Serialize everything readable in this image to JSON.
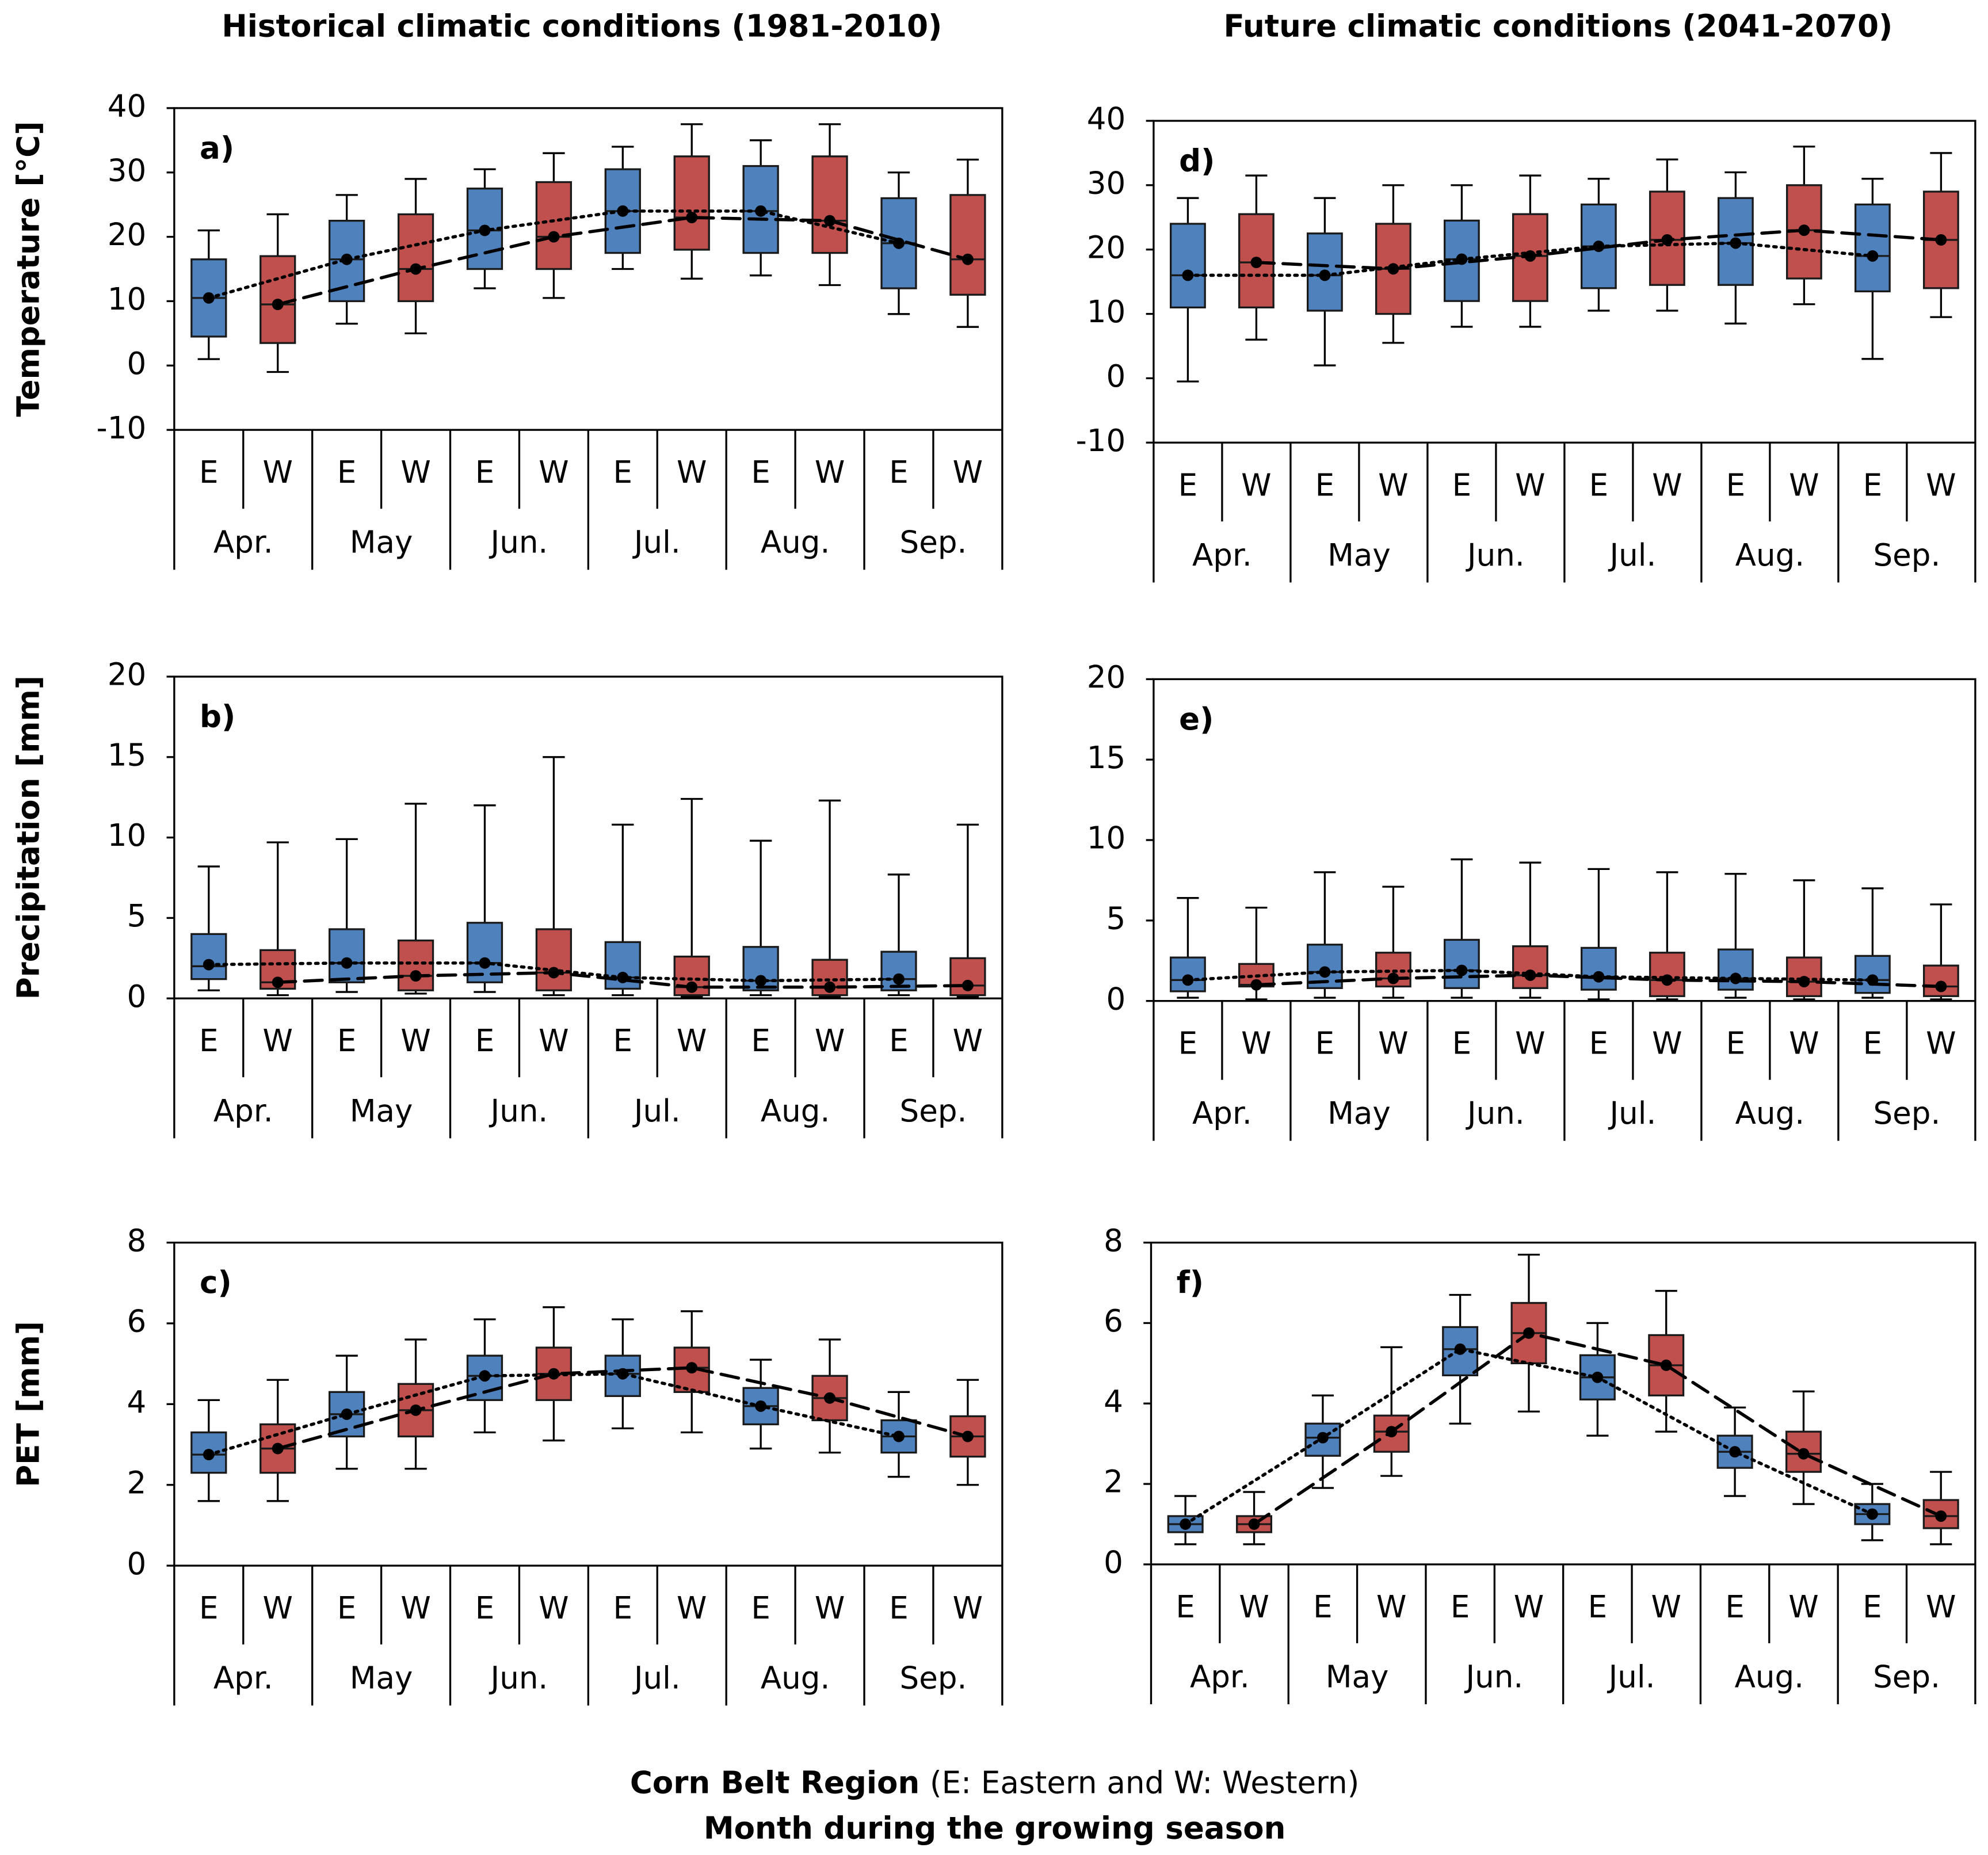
{
  "chart_data": [
    {
      "type": "box",
      "title": "Historical climatic conditions (1981-2010)",
      "label": "a)",
      "ylabel": "Temperature [°C]",
      "categories": [
        "Apr.",
        "May",
        "Jun.",
        "Jul.",
        "Aug.",
        "Sep."
      ],
      "ylim": [
        -10,
        40
      ],
      "yticks": [
        -10,
        0,
        10,
        20,
        30,
        40
      ],
      "series": [
        {
          "name": "E",
          "color": "#4f81bd",
          "line_style": "dotted",
          "min": [
            1,
            6.5,
            12,
            15,
            14,
            8
          ],
          "q1": [
            4.5,
            10,
            15,
            17.5,
            17.5,
            12
          ],
          "median": [
            10.5,
            16.5,
            21,
            24,
            24,
            19
          ],
          "q3": [
            16.5,
            22.5,
            27.5,
            30.5,
            31,
            26
          ],
          "max": [
            21,
            26.5,
            30.5,
            34,
            35,
            30
          ],
          "mean": [
            10.5,
            16.5,
            21,
            24,
            24,
            19
          ]
        },
        {
          "name": "W",
          "color": "#c0504d",
          "line_style": "dashed",
          "min": [
            -1,
            5,
            10.5,
            13.5,
            12.5,
            6
          ],
          "q1": [
            3.5,
            10,
            15,
            18,
            17.5,
            11
          ],
          "median": [
            9.5,
            15,
            20,
            23,
            22.5,
            16.5
          ],
          "q3": [
            17,
            23.5,
            28.5,
            32.5,
            32.5,
            26.5
          ],
          "max": [
            23.5,
            29,
            33,
            37.5,
            37.5,
            32
          ],
          "mean": [
            9.5,
            15,
            20,
            23,
            22.5,
            16.5
          ]
        }
      ]
    },
    {
      "type": "box",
      "label": "b)",
      "ylabel": "Precipitation [mm]",
      "categories": [
        "Apr.",
        "May",
        "Jun.",
        "Jul.",
        "Aug.",
        "Sep."
      ],
      "ylim": [
        0,
        20
      ],
      "yticks": [
        0,
        5,
        10,
        15,
        20
      ],
      "series": [
        {
          "name": "E",
          "color": "#4f81bd",
          "line_style": "dotted",
          "min": [
            0.5,
            0.4,
            0.4,
            0.2,
            0.2,
            0.2
          ],
          "q1": [
            1.2,
            1,
            1,
            0.6,
            0.5,
            0.5
          ],
          "median": [
            2,
            2.2,
            2.2,
            1.3,
            1.1,
            1.2
          ],
          "q3": [
            4,
            4.3,
            4.7,
            3.5,
            3.2,
            2.9
          ],
          "max": [
            8.2,
            9.9,
            12,
            10.8,
            9.8,
            7.7
          ],
          "mean": [
            2.1,
            2.2,
            2.2,
            1.3,
            1.1,
            1.2
          ]
        },
        {
          "name": "W",
          "color": "#c0504d",
          "line_style": "dashed",
          "min": [
            0.2,
            0.3,
            0.2,
            0.1,
            0.1,
            0.1
          ],
          "q1": [
            0.6,
            0.5,
            0.5,
            0.2,
            0.2,
            0.2
          ],
          "median": [
            1,
            1.4,
            1.6,
            0.7,
            0.7,
            0.8
          ],
          "q3": [
            3,
            3.6,
            4.3,
            2.6,
            2.4,
            2.5
          ],
          "max": [
            9.7,
            12.1,
            15,
            12.4,
            12.3,
            10.8
          ],
          "mean": [
            1,
            1.4,
            1.6,
            0.7,
            0.7,
            0.8
          ]
        }
      ]
    },
    {
      "type": "box",
      "label": "c)",
      "ylabel": "PET [mm]",
      "categories": [
        "Apr.",
        "May",
        "Jun.",
        "Jul.",
        "Aug.",
        "Sep."
      ],
      "ylim": [
        0,
        8
      ],
      "yticks": [
        0,
        2,
        4,
        6,
        8
      ],
      "series": [
        {
          "name": "E",
          "color": "#4f81bd",
          "line_style": "dotted",
          "min": [
            1.6,
            2.4,
            3.3,
            3.4,
            2.9,
            2.2
          ],
          "q1": [
            2.3,
            3.2,
            4.1,
            4.2,
            3.5,
            2.8
          ],
          "median": [
            2.75,
            3.75,
            4.7,
            4.75,
            3.95,
            3.2
          ],
          "q3": [
            3.3,
            4.3,
            5.2,
            5.2,
            4.4,
            3.6
          ],
          "max": [
            4.1,
            5.2,
            6.1,
            6.1,
            5.1,
            4.3
          ],
          "mean": [
            2.75,
            3.75,
            4.7,
            4.75,
            3.95,
            3.2
          ]
        },
        {
          "name": "W",
          "color": "#c0504d",
          "line_style": "dashed",
          "min": [
            1.6,
            2.4,
            3.1,
            3.3,
            2.8,
            2
          ],
          "q1": [
            2.3,
            3.2,
            4.1,
            4.3,
            3.6,
            2.7
          ],
          "median": [
            2.9,
            3.85,
            4.75,
            4.9,
            4.15,
            3.2
          ],
          "q3": [
            3.5,
            4.5,
            5.4,
            5.4,
            4.7,
            3.7
          ],
          "max": [
            4.6,
            5.6,
            6.4,
            6.3,
            5.6,
            4.6
          ],
          "mean": [
            2.9,
            3.85,
            4.75,
            4.9,
            4.15,
            3.2
          ]
        }
      ]
    },
    {
      "type": "box",
      "title": "Future climatic conditions (2041-2070)",
      "label": "d)",
      "categories": [
        "Apr.",
        "May",
        "Jun.",
        "Jul.",
        "Aug.",
        "Sep."
      ],
      "ylim": [
        -10,
        40
      ],
      "yticks": [
        -10,
        0,
        10,
        20,
        30,
        40
      ],
      "series": [
        {
          "name": "E",
          "color": "#4f81bd",
          "line_style": "dotted",
          "min": [
            -0.5,
            2,
            8,
            10.5,
            8.5,
            3
          ],
          "q1": [
            11,
            10.5,
            12,
            14,
            14.5,
            13.5
          ],
          "median": [
            16,
            16,
            18.5,
            20.5,
            21,
            19
          ],
          "q3": [
            24,
            22.5,
            24.5,
            27,
            28,
            27
          ],
          "max": [
            28,
            28,
            30,
            31,
            32,
            31
          ],
          "mean": [
            16,
            16,
            18.5,
            20.5,
            21,
            19
          ]
        },
        {
          "name": "W",
          "color": "#c0504d",
          "line_style": "dashed",
          "min": [
            6,
            5.5,
            8,
            10.5,
            11.5,
            9.5
          ],
          "q1": [
            11,
            10,
            12,
            14.5,
            15.5,
            14
          ],
          "median": [
            18,
            17,
            19,
            21.5,
            23,
            21.5
          ],
          "q3": [
            25.5,
            24,
            25.5,
            29,
            30,
            29
          ],
          "max": [
            31.5,
            30,
            31.5,
            34,
            36,
            35
          ],
          "mean": [
            18,
            17,
            19,
            21.5,
            23,
            21.5
          ]
        }
      ]
    },
    {
      "type": "box",
      "label": "e)",
      "categories": [
        "Apr.",
        "May",
        "Jun.",
        "Jul.",
        "Aug.",
        "Sep."
      ],
      "ylim": [
        0,
        20
      ],
      "yticks": [
        0,
        5,
        10,
        15,
        20
      ],
      "series": [
        {
          "name": "E",
          "color": "#4f81bd",
          "line_style": "dotted",
          "min": [
            0.2,
            0.2,
            0.2,
            0.1,
            0.2,
            0.2
          ],
          "q1": [
            0.6,
            0.8,
            0.8,
            0.7,
            0.7,
            0.5
          ],
          "median": [
            1.3,
            1.8,
            1.9,
            1.5,
            1.4,
            1.3
          ],
          "q3": [
            2.7,
            3.5,
            3.8,
            3.3,
            3.2,
            2.8
          ],
          "max": [
            6.4,
            8,
            8.8,
            8.2,
            7.9,
            7
          ],
          "mean": [
            1.3,
            1.8,
            1.9,
            1.5,
            1.4,
            1.3
          ]
        },
        {
          "name": "W",
          "color": "#c0504d",
          "line_style": "dashed",
          "min": [
            0.1,
            0.2,
            0.2,
            0.1,
            0.1,
            0.1
          ],
          "q1": [
            0.9,
            0.9,
            0.8,
            0.3,
            0.3,
            0.3
          ],
          "median": [
            1,
            1.4,
            1.6,
            1.3,
            1.2,
            0.9
          ],
          "q3": [
            2.3,
            3,
            3.4,
            3,
            2.7,
            2.2
          ],
          "max": [
            5.8,
            7.1,
            8.6,
            8,
            7.5,
            6
          ],
          "mean": [
            1,
            1.4,
            1.6,
            1.3,
            1.2,
            0.9
          ]
        }
      ]
    },
    {
      "type": "box",
      "label": "f)",
      "categories": [
        "Apr.",
        "May",
        "Jun.",
        "Jul.",
        "Aug.",
        "Sep."
      ],
      "ylim": [
        0,
        8
      ],
      "yticks": [
        0,
        2,
        4,
        6,
        8
      ],
      "series": [
        {
          "name": "E",
          "color": "#4f81bd",
          "line_style": "dotted",
          "min": [
            0.5,
            1.9,
            3.5,
            3.2,
            1.7,
            0.6
          ],
          "q1": [
            0.8,
            2.7,
            4.7,
            4.1,
            2.4,
            1
          ],
          "median": [
            1,
            3.15,
            5.35,
            4.65,
            2.8,
            1.25
          ],
          "q3": [
            1.2,
            3.5,
            5.9,
            5.2,
            3.2,
            1.5
          ],
          "max": [
            1.7,
            4.2,
            6.7,
            6,
            3.9,
            2
          ],
          "mean": [
            1,
            3.15,
            5.35,
            4.65,
            2.8,
            1.25
          ]
        },
        {
          "name": "W",
          "color": "#c0504d",
          "line_style": "dashed",
          "min": [
            0.5,
            2.2,
            3.8,
            3.3,
            1.5,
            0.5
          ],
          "q1": [
            0.8,
            2.8,
            5,
            4.2,
            2.3,
            0.9
          ],
          "median": [
            1,
            3.3,
            5.75,
            4.95,
            2.75,
            1.2
          ],
          "q3": [
            1.2,
            3.7,
            6.5,
            5.7,
            3.3,
            1.6
          ],
          "max": [
            1.8,
            5.4,
            7.7,
            6.8,
            4.3,
            2.3
          ],
          "mean": [
            1,
            3.3,
            5.75,
            4.95,
            2.75,
            1.2
          ]
        }
      ]
    }
  ],
  "x_label": {
    "bold": "Corn Belt Region",
    "regular": "(E: Eastern and W: Western)"
  },
  "x_label_2": "Month during the growing season"
}
